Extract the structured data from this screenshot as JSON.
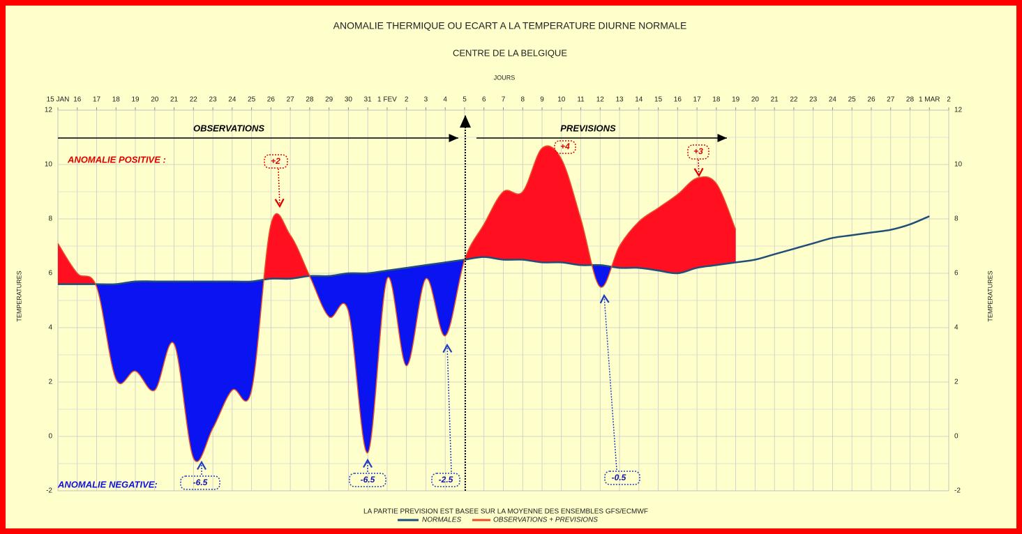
{
  "chart_data": {
    "type": "area-anomaly",
    "title": "ANOMALIE THERMIQUE OU ECART A LA TEMPERATURE DIURNE NORMALE",
    "subtitle": "CENTRE DE LA BELGIQUE",
    "x_label": "JOURS",
    "y_label": "TEMPERATURES",
    "y2_label": "TEMPERATURES",
    "footnote": "LA PARTIE PREVISION EST BASEE SUR LA MOYENNE DES ENSEMBLES GFS/ECMWF",
    "categories": [
      "15 JAN",
      "16",
      "17",
      "18",
      "19",
      "20",
      "21",
      "22",
      "23",
      "24",
      "25",
      "26",
      "27",
      "28",
      "29",
      "30",
      "31",
      "1 FEV",
      "2",
      "3",
      "4",
      "5",
      "6",
      "7",
      "8",
      "9",
      "10",
      "11",
      "12",
      "13",
      "14",
      "15",
      "16",
      "17",
      "18",
      "19",
      "20",
      "21",
      "22",
      "23",
      "24",
      "25",
      "26",
      "27",
      "28",
      "1 MAR",
      "2"
    ],
    "series": [
      {
        "name": "NORMALES",
        "color": "#1f4e79",
        "values": [
          5.6,
          5.6,
          5.6,
          5.6,
          5.7,
          5.7,
          5.7,
          5.7,
          5.7,
          5.7,
          5.7,
          5.8,
          5.8,
          5.9,
          5.9,
          6.0,
          6.0,
          6.1,
          6.2,
          6.3,
          6.4,
          6.5,
          6.6,
          6.5,
          6.5,
          6.4,
          6.4,
          6.3,
          6.3,
          6.2,
          6.2,
          6.1,
          6.0,
          6.2,
          6.3,
          6.4,
          6.5,
          6.7,
          6.9,
          7.1,
          7.3,
          7.4,
          7.5,
          7.6,
          7.8,
          8.1,
          null
        ]
      },
      {
        "name": "OBSERVATIONS + PREVISIONS",
        "color": "#e8502a",
        "values": [
          7.1,
          6.0,
          5.5,
          2.1,
          2.4,
          1.7,
          3.4,
          -0.8,
          0.3,
          1.7,
          1.7,
          7.8,
          7.4,
          5.9,
          4.4,
          4.6,
          -0.6,
          5.8,
          2.6,
          5.8,
          3.7,
          6.5,
          7.8,
          9.0,
          9.0,
          10.6,
          10.2,
          8.0,
          5.5,
          7.0,
          7.9,
          8.4,
          8.9,
          9.5,
          9.3,
          7.6,
          null,
          null,
          null,
          null,
          null,
          null,
          null,
          null,
          null,
          null,
          null
        ]
      }
    ],
    "positive_color": "#ff0f1f",
    "negative_color": "#0a14f0",
    "ylim": [
      -2,
      12
    ],
    "yticks": [
      -2,
      0,
      2,
      4,
      6,
      8,
      10,
      12
    ],
    "y2lim": [
      -2,
      12
    ],
    "y2ticks": [
      -2,
      0,
      2,
      4,
      6,
      8,
      10,
      12
    ],
    "grid": true,
    "annotations": [
      "OBSERVATIONS",
      "PREVISIONS",
      "ANOMALIE POSITIVE :",
      "ANOMALIE NEGATIVE:",
      "+2",
      "+4",
      "+3",
      "-6.5",
      "-6.5",
      "-2.5",
      "-0.5"
    ]
  }
}
